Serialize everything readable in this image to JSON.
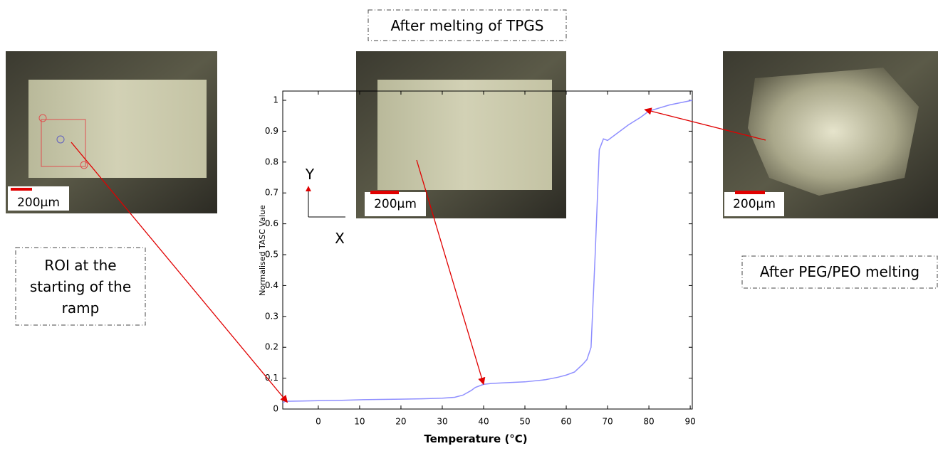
{
  "chart_data": {
    "type": "line",
    "x_label": "Temperature (°C)",
    "y_label": "Normalised TASC Value",
    "x": [
      -8.6,
      -8,
      -4,
      0,
      5,
      10,
      15,
      20,
      25,
      30,
      33,
      35,
      37,
      38,
      40,
      42,
      45,
      50,
      55,
      58,
      60,
      62,
      64,
      65,
      66,
      67,
      68,
      69,
      70,
      72,
      75,
      78,
      80,
      85,
      90.5
    ],
    "series": [
      {
        "name": "Normalised TASC Value",
        "color": "#8f8fff",
        "values": [
          0.02,
          0.025,
          0.026,
          0.027,
          0.028,
          0.03,
          0.031,
          0.032,
          0.033,
          0.035,
          0.038,
          0.045,
          0.06,
          0.07,
          0.08,
          0.083,
          0.085,
          0.088,
          0.095,
          0.103,
          0.11,
          0.12,
          0.145,
          0.16,
          0.2,
          0.5,
          0.84,
          0.875,
          0.87,
          0.89,
          0.92,
          0.945,
          0.965,
          0.985,
          1.0
        ]
      }
    ],
    "xlim": [
      -8.6,
      90.5
    ],
    "ylim": [
      0,
      1.03
    ],
    "xticks": [
      0,
      10,
      20,
      30,
      40,
      50,
      60,
      70,
      80,
      90
    ],
    "yticks": [
      0,
      0.1,
      0.2,
      0.3,
      0.4,
      0.5,
      0.6,
      0.7,
      0.8,
      0.9,
      1
    ],
    "annotations": [
      {
        "text": "ROI at the starting of the ramp",
        "x": -7.5,
        "y": 0.022
      },
      {
        "text": "After melting of TPGS",
        "x": 40,
        "y": 0.08
      },
      {
        "text": "After PEG/PEO melting",
        "x": 79,
        "y": 0.97
      }
    ],
    "scale_bars": [
      "200µm",
      "200µm",
      "200µm"
    ],
    "orientation": {
      "y": "Y",
      "x": "X"
    }
  }
}
